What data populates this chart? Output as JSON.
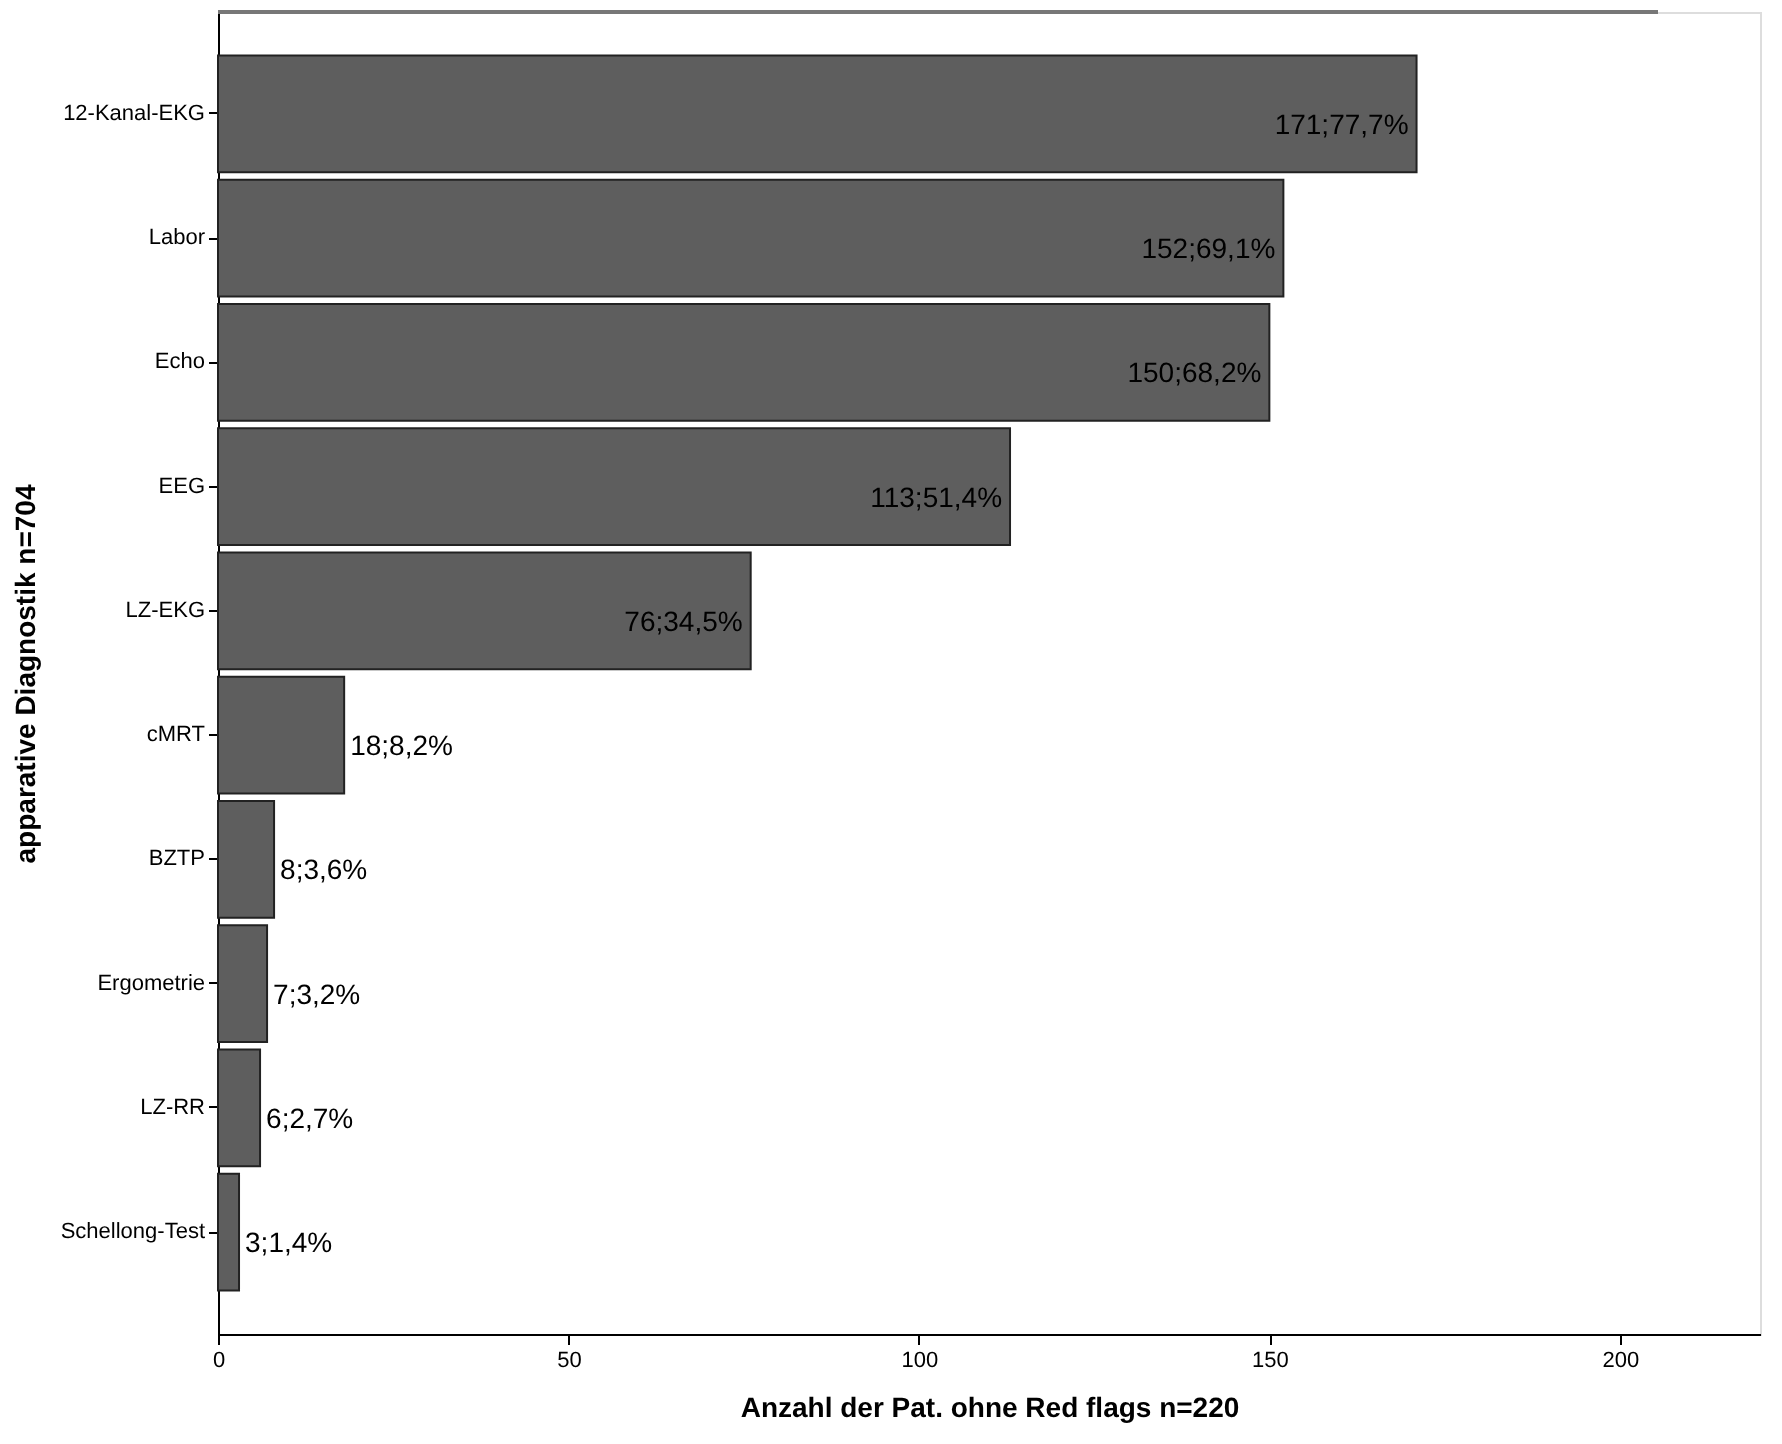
{
  "chart_data": {
    "type": "bar",
    "orientation": "horizontal",
    "xlabel": "Anzahl der Pat. ohne Red flags n=220",
    "ylabel": "apparative Diagnostik n=704",
    "categories": [
      "12-Kanal-EKG",
      "Labor",
      "Echo",
      "EEG",
      "LZ-EKG",
      "cMRT",
      "BZTP",
      "Ergometrie",
      "LZ-RR",
      "Schellong-Test"
    ],
    "values": [
      171,
      152,
      150,
      113,
      76,
      18,
      8,
      7,
      6,
      3
    ],
    "value_labels": [
      "171;77,7%",
      "152;69,1%",
      "150;68,2%",
      "113;51,4%",
      "76;34,5%",
      "18;8,2%",
      "8;3,6%",
      "7;3,2%",
      "6;2,7%",
      "3;1,4%"
    ],
    "color": "#5e5e5e",
    "xlim": [
      0,
      220
    ],
    "xticks": [
      0,
      50,
      100,
      150,
      200
    ],
    "grid": false
  }
}
